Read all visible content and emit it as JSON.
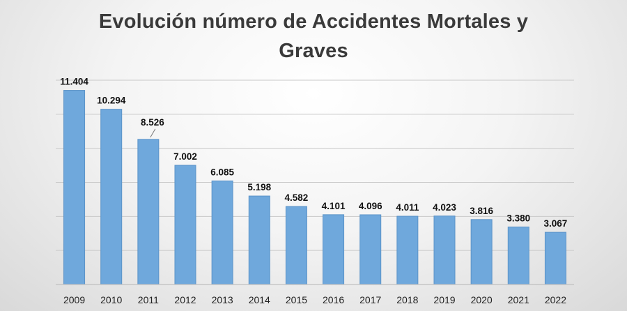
{
  "chart_data": {
    "type": "bar",
    "title_lines": [
      "Evolución número de Accidentes Mortales y",
      "Graves"
    ],
    "xlabel": "",
    "ylabel": "",
    "categories": [
      "2009",
      "2010",
      "2011",
      "2012",
      "2013",
      "2014",
      "2015",
      "2016",
      "2017",
      "2018",
      "2019",
      "2020",
      "2021",
      "2022"
    ],
    "values": [
      11404,
      10294,
      8526,
      7002,
      6085,
      5198,
      4582,
      4101,
      4096,
      4011,
      4023,
      3816,
      3380,
      3067
    ],
    "value_labels": [
      "11.404",
      "10.294",
      "8.526",
      "7.002",
      "6.085",
      "5.198",
      "4.582",
      "4.101",
      "4.096",
      "4.011",
      "4.023",
      "3.816",
      "3.380",
      "3.067"
    ],
    "ylim": [
      0,
      12000
    ],
    "gridlines": [
      2000,
      4000,
      6000,
      8000,
      10000,
      12000
    ],
    "grid": true,
    "y_tick_labels_shown": false,
    "legend": false,
    "bar_color": "#6fa8dc",
    "bar_stroke_color": "#5b93c8"
  }
}
